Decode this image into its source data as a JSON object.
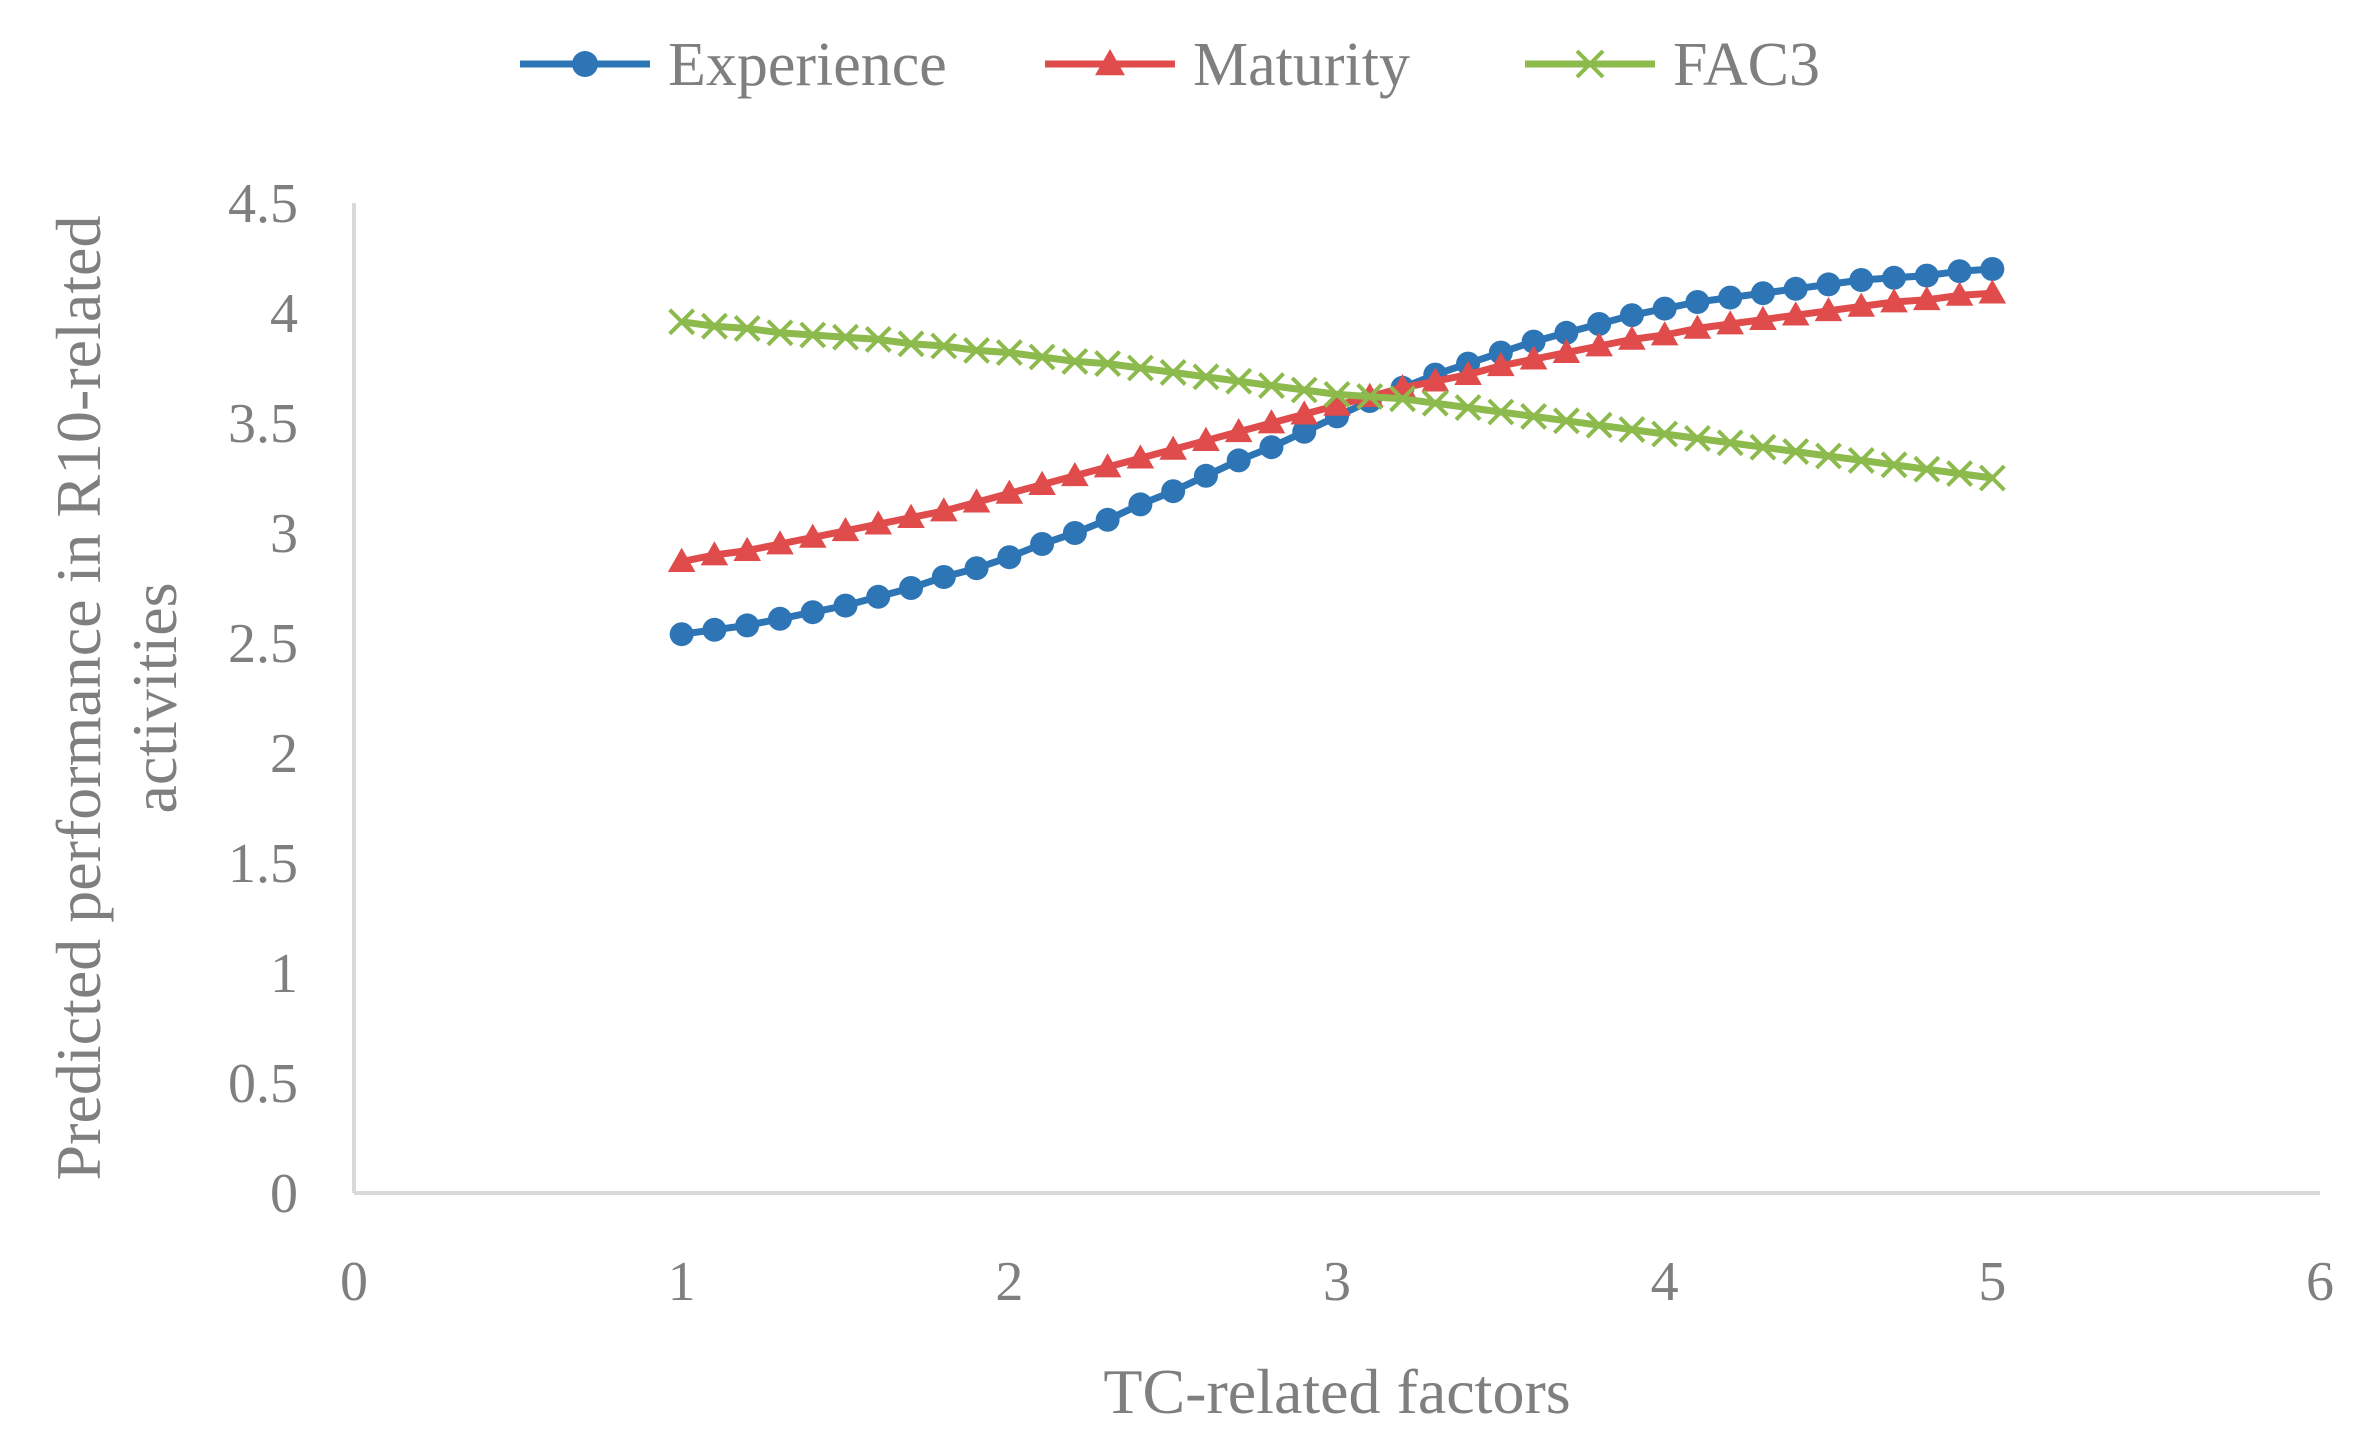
{
  "chart_data": {
    "type": "line",
    "title": "",
    "xlabel": "TC-related factors",
    "ylabel_lines": [
      "Predicted performance in R10-related",
      "activities"
    ],
    "xlim": [
      0,
      6
    ],
    "ylim": [
      0,
      4.5
    ],
    "x_ticks": [
      "0",
      "1",
      "2",
      "3",
      "4",
      "5",
      "6"
    ],
    "y_ticks": [
      "0",
      "0.5",
      "1",
      "1.5",
      "2",
      "2.5",
      "3",
      "3.5",
      "4",
      "4.5"
    ],
    "grid": false,
    "legend_position": "top",
    "x": [
      1.0,
      1.1,
      1.2,
      1.3,
      1.4,
      1.5,
      1.6,
      1.7,
      1.8,
      1.9,
      2.0,
      2.1,
      2.2,
      2.3,
      2.4,
      2.5,
      2.6,
      2.7,
      2.8,
      2.9,
      3.0,
      3.1,
      3.2,
      3.3,
      3.4,
      3.5,
      3.6,
      3.7,
      3.8,
      3.9,
      4.0,
      4.1,
      4.2,
      4.3,
      4.4,
      4.5,
      4.6,
      4.7,
      4.8,
      4.9,
      5.0
    ],
    "series": [
      {
        "name": "Experience",
        "color": "#2e75b6",
        "marker": "circle",
        "values": [
          2.54,
          2.56,
          2.58,
          2.61,
          2.64,
          2.67,
          2.71,
          2.75,
          2.8,
          2.84,
          2.89,
          2.95,
          3.0,
          3.06,
          3.13,
          3.19,
          3.26,
          3.33,
          3.39,
          3.46,
          3.53,
          3.6,
          3.66,
          3.72,
          3.77,
          3.82,
          3.87,
          3.91,
          3.95,
          3.99,
          4.02,
          4.05,
          4.07,
          4.09,
          4.11,
          4.13,
          4.15,
          4.16,
          4.17,
          4.19,
          4.2
        ]
      },
      {
        "name": "Maturity",
        "color": "#e04b4b",
        "marker": "triangle",
        "values": [
          2.87,
          2.9,
          2.92,
          2.95,
          2.98,
          3.01,
          3.04,
          3.07,
          3.1,
          3.14,
          3.18,
          3.22,
          3.26,
          3.3,
          3.34,
          3.38,
          3.42,
          3.46,
          3.5,
          3.54,
          3.58,
          3.62,
          3.66,
          3.69,
          3.72,
          3.76,
          3.79,
          3.82,
          3.85,
          3.88,
          3.9,
          3.93,
          3.95,
          3.97,
          3.99,
          4.01,
          4.03,
          4.05,
          4.06,
          4.08,
          4.09
        ]
      },
      {
        "name": "FAC3",
        "color": "#8cba4c",
        "marker": "x",
        "values": [
          3.96,
          3.94,
          3.93,
          3.91,
          3.9,
          3.89,
          3.88,
          3.86,
          3.85,
          3.83,
          3.82,
          3.8,
          3.78,
          3.77,
          3.75,
          3.73,
          3.71,
          3.69,
          3.67,
          3.65,
          3.63,
          3.62,
          3.61,
          3.59,
          3.57,
          3.55,
          3.53,
          3.51,
          3.49,
          3.47,
          3.45,
          3.43,
          3.41,
          3.39,
          3.37,
          3.35,
          3.33,
          3.31,
          3.29,
          3.27,
          3.25
        ]
      }
    ]
  }
}
